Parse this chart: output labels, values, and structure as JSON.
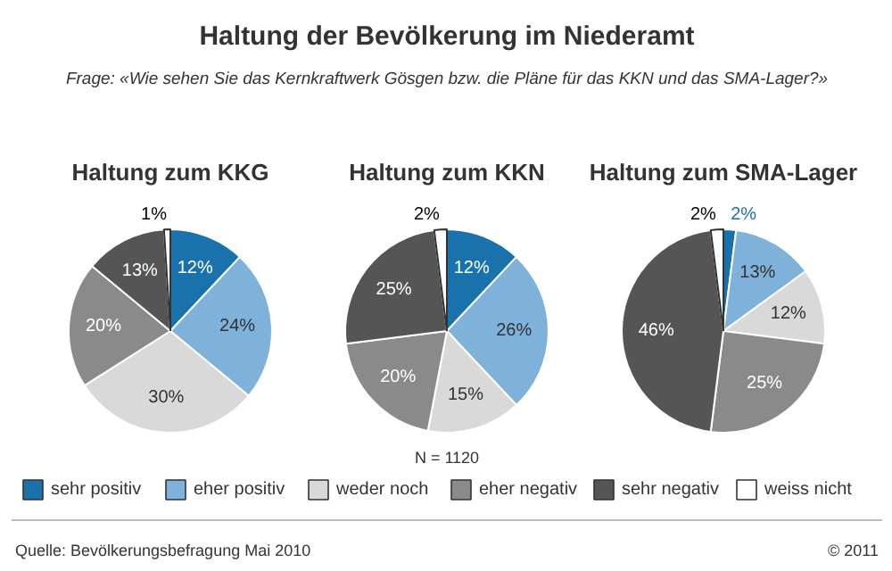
{
  "chart_data": [
    {
      "type": "pie",
      "title": "Haltung der Bevölkerung im Niederamt",
      "subtitle": "Frage: «Wie sehen Sie das Kernkraftwerk Gösgen bzw. die Pläne für das KKN und das SMA-Lager?»",
      "xlabel": "Haltung zum KKG",
      "categories": [
        "sehr positiv",
        "eher positiv",
        "weder noch",
        "eher negativ",
        "sehr negativ",
        "weiss nicht"
      ],
      "values": [
        12,
        24,
        30,
        20,
        13,
        1
      ],
      "value_labels": [
        "12%",
        "24%",
        "30%",
        "20%",
        "13%",
        "1%"
      ],
      "colors": [
        "#1a72ad",
        "#7fb2da",
        "#d9d9d9",
        "#8a8a8a",
        "#555555",
        "#ffffff"
      ],
      "legend": "bottom",
      "annotations": [
        "N = 1120",
        "Quelle: Bevölkerungsbefragung Mai 2010",
        "© 2011"
      ]
    },
    {
      "type": "pie",
      "xlabel": "Haltung zum KKN",
      "values": [
        12,
        26,
        15,
        20,
        25,
        2
      ],
      "value_labels": [
        "12%",
        "26%",
        "15%",
        "20%",
        "25%",
        "2%"
      ],
      "colors": [
        "#1a72ad",
        "#7fb2da",
        "#d9d9d9",
        "#8a8a8a",
        "#555555",
        "#ffffff"
      ]
    },
    {
      "type": "pie",
      "xlabel": "Haltung zum SMA-Lager",
      "values": [
        2,
        13,
        12,
        25,
        46,
        2
      ],
      "value_labels": [
        "2%",
        "13%",
        "12%",
        "25%",
        "46%",
        "2%"
      ],
      "colors": [
        "#1a72ad",
        "#7fb2da",
        "#d9d9d9",
        "#8a8a8a",
        "#555555",
        "#ffffff"
      ]
    }
  ]
}
